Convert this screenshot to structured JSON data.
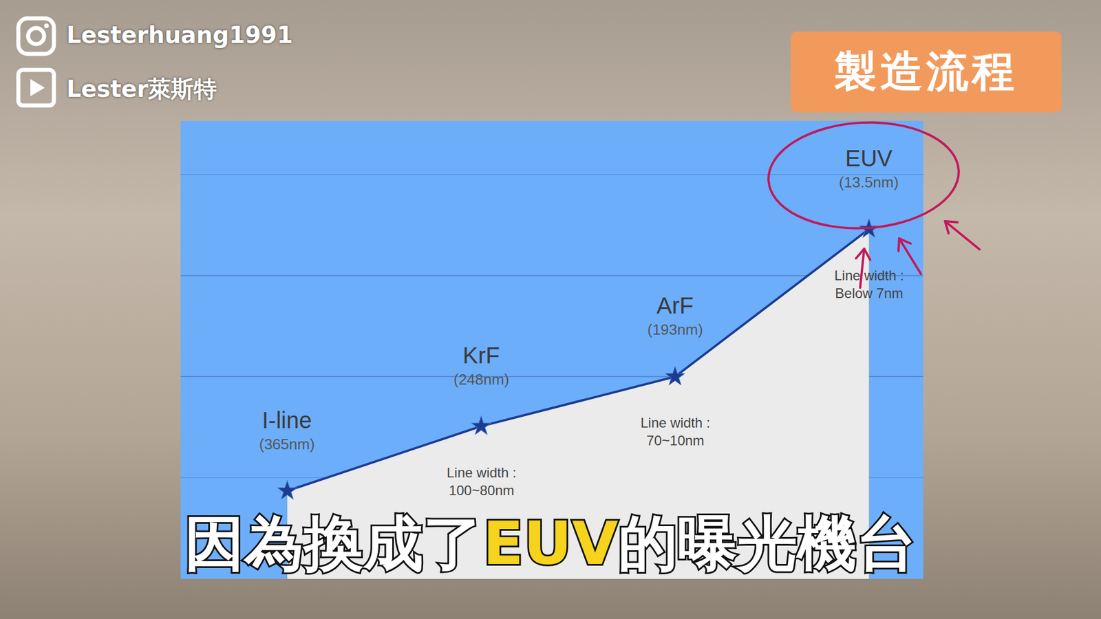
{
  "page": {
    "instagram": "Lesterhuang1991",
    "youtube": "Lester萊斯特",
    "badge": "製造流程",
    "subtitle": [
      "因為換成了",
      "EUV",
      "的曝光機台"
    ]
  },
  "chart_data": {
    "type": "line",
    "categories": [
      "I-line",
      "KrF",
      "ArF",
      "EUV"
    ],
    "wavelengths": [
      "(365nm)",
      "(248nm)",
      "(193nm)",
      "(13.5nm)"
    ],
    "line_widths": [
      null,
      [
        "Line width :",
        "100~80nm"
      ],
      [
        "Line width :",
        "70~10nm"
      ],
      [
        "Line width :",
        "Below 7nm"
      ]
    ],
    "values": [
      0.87,
      1.51,
      2.0,
      3.46
    ],
    "xlim": [
      -0.55,
      3.28
    ],
    "ylim": [
      0,
      4.53
    ],
    "yticks": [
      1,
      2,
      3,
      4
    ],
    "grid": true,
    "tick_labels": false,
    "color": "#1c3d8f",
    "marker": "star"
  }
}
